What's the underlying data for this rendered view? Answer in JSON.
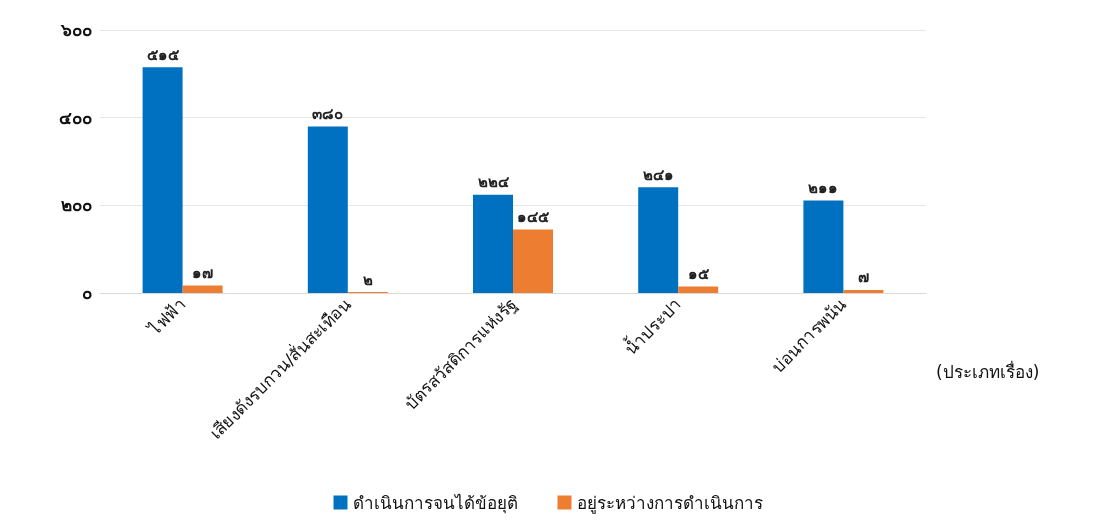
{
  "chart_data": {
    "type": "bar",
    "xlabel": "(ประเภทเรื่อง)",
    "categories": [
      "ไฟฟ้า",
      "เสียงดังรบกวน/สั่นสะเทือน",
      "บัตรสวัสดิการแห่งรัฐ",
      "น้ำประปา",
      "บ่อนการพนัน"
    ],
    "series": [
      {
        "name": "ดำเนินการจนได้ข้อยุติ",
        "color": "#0070c0",
        "values": [
          515,
          380,
          224,
          241,
          211
        ],
        "value_labels": [
          "๕๑๕",
          "๓๘๐",
          "๒๒๔",
          "๒๔๑",
          "๒๑๑"
        ]
      },
      {
        "name": "อยู่ระหว่างการดำเนินการ",
        "color": "#ed7d31",
        "values": [
          17,
          2,
          145,
          15,
          7
        ],
        "value_labels": [
          "๑๗",
          "๒",
          "๑๔๕",
          "๑๕",
          "๗"
        ]
      }
    ],
    "ylim": [
      0,
      600
    ],
    "yticks": [
      {
        "value": 0,
        "label": "๐"
      },
      {
        "value": 200,
        "label": "๒๐๐"
      },
      {
        "value": 400,
        "label": "๔๐๐"
      },
      {
        "value": 600,
        "label": "๖๐๐"
      }
    ],
    "grid": "y",
    "legend": "bottom"
  }
}
